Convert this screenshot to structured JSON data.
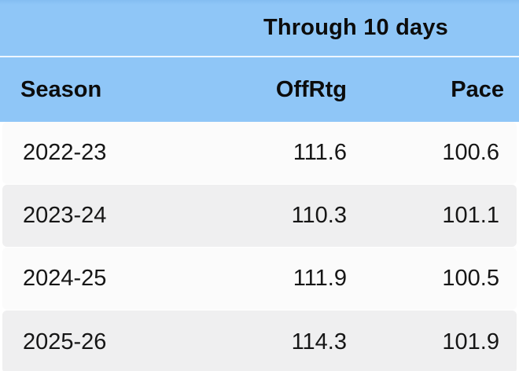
{
  "chart_data": {
    "type": "table",
    "title": "Through 10 days",
    "columns": [
      "Season",
      "OffRtg",
      "Pace"
    ],
    "rows": [
      [
        "2022-23",
        "111.6",
        "100.6"
      ],
      [
        "2023-24",
        "110.3",
        "101.1"
      ],
      [
        "2024-25",
        "111.9",
        "100.5"
      ],
      [
        "2025-26",
        "114.3",
        "101.9"
      ]
    ],
    "layout_hints": {
      "group_header_spans": "OffRtg and Pace columns",
      "season_column_align": "left",
      "numeric_columns_align": "right",
      "zebra_striping": true
    }
  },
  "colors": {
    "header_blue": "#8fc6f7",
    "header_separator": "#ffffff",
    "row_white": "#fbfbfb",
    "row_gray": "#efeff0",
    "header_text": "#0c0c0c",
    "body_text": "#161616"
  }
}
